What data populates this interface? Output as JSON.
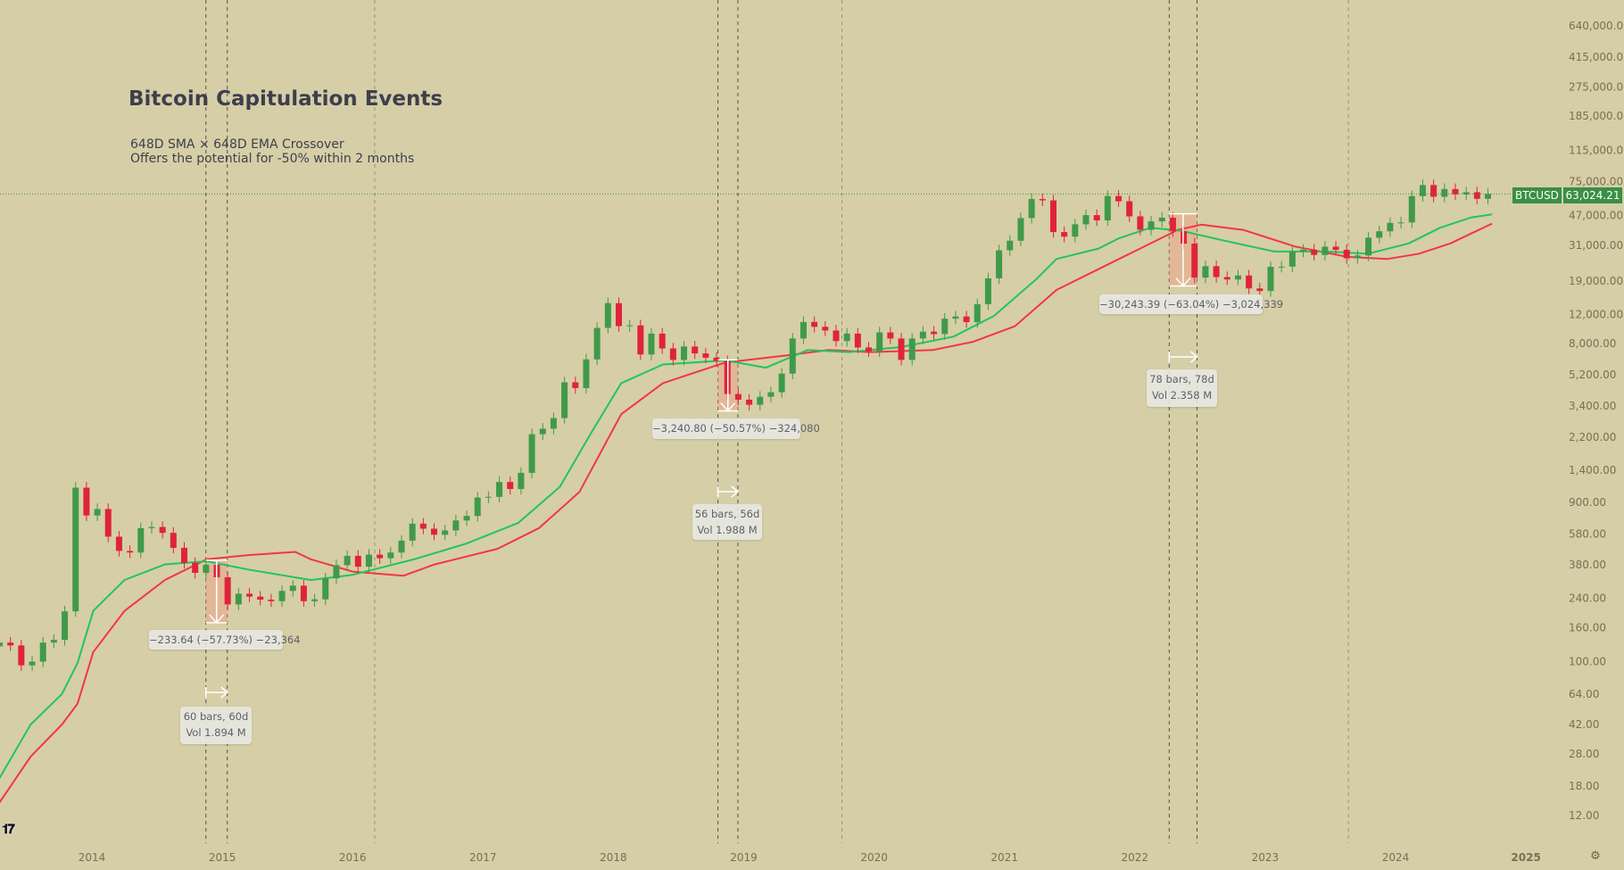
{
  "header": {
    "title": "Bitcoin Capitulation Events",
    "subtitle_line1": "648D SMA × 648D EMA Crossover",
    "subtitle_line2": "Offers the potential for -50% within 2 months"
  },
  "price_tag": {
    "symbol": "BTCUSD",
    "value": "63,024.21",
    "price": 63024.21,
    "color": "#3a8f45"
  },
  "colors": {
    "background": "#d6cea6",
    "up": "#3f9a4a",
    "down": "#e0233a",
    "sma": "#21c55d",
    "ema": "#f23645",
    "measure_fill": "#e9a98a"
  },
  "chart_data": {
    "type": "candlestick",
    "symbol": "BTCUSD",
    "y_scale": "log",
    "ylim": [
      10,
      800000
    ],
    "xlim": [
      "2013-04",
      "2025-03"
    ],
    "grid": false,
    "y_ticks": [
      "640,000.00",
      "415,000.00",
      "275,000.00",
      "185,000.00",
      "115,000.00",
      "75,000.00",
      "47,000.00",
      "31,000.00",
      "19,000.00",
      "12,000.00",
      "8,000.00",
      "5,200.00",
      "3,400.00",
      "2,200.00",
      "1,400.00",
      "900.00",
      "580.00",
      "380.00",
      "240.00",
      "160.00",
      "100.00",
      "64.00",
      "42.00",
      "28.00",
      "18.00",
      "12.00"
    ],
    "x_ticks": [
      "2014",
      "2015",
      "2016",
      "2017",
      "2018",
      "2019",
      "2020",
      "2021",
      "2022",
      "2023",
      "2024",
      "2025"
    ],
    "monthly_close": [
      [
        "2013-04",
        130
      ],
      [
        "2013-05",
        125
      ],
      [
        "2013-06",
        95
      ],
      [
        "2013-07",
        100
      ],
      [
        "2013-08",
        130
      ],
      [
        "2013-09",
        135
      ],
      [
        "2013-10",
        200
      ],
      [
        "2013-11",
        1100
      ],
      [
        "2013-12",
        750
      ],
      [
        "2014-01",
        820
      ],
      [
        "2014-02",
        560
      ],
      [
        "2014-03",
        460
      ],
      [
        "2014-04",
        450
      ],
      [
        "2014-05",
        630
      ],
      [
        "2014-06",
        640
      ],
      [
        "2014-07",
        590
      ],
      [
        "2014-08",
        480
      ],
      [
        "2014-09",
        390
      ],
      [
        "2014-10",
        340
      ],
      [
        "2014-11",
        380
      ],
      [
        "2014-12",
        320
      ],
      [
        "2015-01",
        220
      ],
      [
        "2015-02",
        255
      ],
      [
        "2015-03",
        245
      ],
      [
        "2015-04",
        235
      ],
      [
        "2015-05",
        230
      ],
      [
        "2015-06",
        265
      ],
      [
        "2015-07",
        285
      ],
      [
        "2015-08",
        230
      ],
      [
        "2015-09",
        236
      ],
      [
        "2015-10",
        315
      ],
      [
        "2015-11",
        378
      ],
      [
        "2015-12",
        430
      ],
      [
        "2016-01",
        370
      ],
      [
        "2016-02",
        437
      ],
      [
        "2016-03",
        416
      ],
      [
        "2016-04",
        450
      ],
      [
        "2016-05",
        530
      ],
      [
        "2016-06",
        670
      ],
      [
        "2016-07",
        625
      ],
      [
        "2016-08",
        575
      ],
      [
        "2016-09",
        610
      ],
      [
        "2016-10",
        700
      ],
      [
        "2016-11",
        745
      ],
      [
        "2016-12",
        960
      ],
      [
        "2017-01",
        970
      ],
      [
        "2017-02",
        1190
      ],
      [
        "2017-03",
        1080
      ],
      [
        "2017-04",
        1350
      ],
      [
        "2017-05",
        2300
      ],
      [
        "2017-06",
        2480
      ],
      [
        "2017-07",
        2870
      ],
      [
        "2017-08",
        4700
      ],
      [
        "2017-09",
        4340
      ],
      [
        "2017-10",
        6450
      ],
      [
        "2017-11",
        9950
      ],
      [
        "2017-12",
        14000
      ],
      [
        "2018-01",
        10200
      ],
      [
        "2018-02",
        10300
      ],
      [
        "2018-03",
        6900
      ],
      [
        "2018-04",
        9200
      ],
      [
        "2018-05",
        7500
      ],
      [
        "2018-06",
        6400
      ],
      [
        "2018-07",
        7700
      ],
      [
        "2018-08",
        7000
      ],
      [
        "2018-09",
        6600
      ],
      [
        "2018-10",
        6300
      ],
      [
        "2018-11",
        4000
      ],
      [
        "2018-12",
        3700
      ],
      [
        "2019-01",
        3450
      ],
      [
        "2019-02",
        3850
      ],
      [
        "2019-03",
        4100
      ],
      [
        "2019-04",
        5300
      ],
      [
        "2019-05",
        8600
      ],
      [
        "2019-06",
        10800
      ],
      [
        "2019-07",
        10100
      ],
      [
        "2019-08",
        9600
      ],
      [
        "2019-09",
        8300
      ],
      [
        "2019-10",
        9200
      ],
      [
        "2019-11",
        7600
      ],
      [
        "2019-12",
        7200
      ],
      [
        "2020-01",
        9350
      ],
      [
        "2020-02",
        8600
      ],
      [
        "2020-03",
        6400
      ],
      [
        "2020-04",
        8600
      ],
      [
        "2020-05",
        9450
      ],
      [
        "2020-06",
        9140
      ],
      [
        "2020-07",
        11300
      ],
      [
        "2020-08",
        11650
      ],
      [
        "2020-09",
        10780
      ],
      [
        "2020-10",
        13800
      ],
      [
        "2020-11",
        19700
      ],
      [
        "2020-12",
        29000
      ],
      [
        "2021-01",
        33100
      ],
      [
        "2021-02",
        45200
      ],
      [
        "2021-03",
        58800
      ],
      [
        "2021-04",
        57700
      ],
      [
        "2021-05",
        37300
      ],
      [
        "2021-06",
        35000
      ],
      [
        "2021-07",
        41500
      ],
      [
        "2021-08",
        47100
      ],
      [
        "2021-09",
        43800
      ],
      [
        "2021-10",
        61300
      ],
      [
        "2021-11",
        57000
      ],
      [
        "2021-12",
        46300
      ],
      [
        "2022-01",
        38500
      ],
      [
        "2022-02",
        43200
      ],
      [
        "2022-03",
        45500
      ],
      [
        "2022-04",
        37700
      ],
      [
        "2022-05",
        31800
      ],
      [
        "2022-06",
        19900
      ],
      [
        "2022-07",
        23300
      ],
      [
        "2022-08",
        20050
      ],
      [
        "2022-09",
        19400
      ],
      [
        "2022-10",
        20500
      ],
      [
        "2022-11",
        17150
      ],
      [
        "2022-12",
        16550
      ],
      [
        "2023-01",
        23100
      ],
      [
        "2023-02",
        23150
      ],
      [
        "2023-03",
        28500
      ],
      [
        "2023-04",
        29250
      ],
      [
        "2023-05",
        27200
      ],
      [
        "2023-06",
        30500
      ],
      [
        "2023-07",
        29200
      ],
      [
        "2023-08",
        26000
      ],
      [
        "2023-09",
        27000
      ],
      [
        "2023-10",
        34500
      ],
      [
        "2023-11",
        37700
      ],
      [
        "2023-12",
        42300
      ],
      [
        "2024-01",
        42600
      ],
      [
        "2024-02",
        61200
      ],
      [
        "2024-03",
        71300
      ],
      [
        "2024-04",
        60700
      ],
      [
        "2024-05",
        67500
      ],
      [
        "2024-06",
        62700
      ],
      [
        "2024-07",
        64600
      ],
      [
        "2024-08",
        59000
      ],
      [
        "2024-09",
        63024.21
      ]
    ],
    "sma_648d": [
      [
        2013.29,
        20
      ],
      [
        2013.53,
        42
      ],
      [
        2013.77,
        64
      ],
      [
        2013.89,
        98
      ],
      [
        2014.01,
        201
      ],
      [
        2014.25,
        308
      ],
      [
        2014.56,
        382
      ],
      [
        2014.88,
        399
      ],
      [
        2015.2,
        356
      ],
      [
        2015.68,
        308
      ],
      [
        2016.0,
        331
      ],
      [
        2016.47,
        410
      ],
      [
        2016.87,
        508
      ],
      [
        2017.27,
        676
      ],
      [
        2017.59,
        1114
      ],
      [
        2017.82,
        2275
      ],
      [
        2018.06,
        4645
      ],
      [
        2018.38,
        6010
      ],
      [
        2018.86,
        6360
      ],
      [
        2019.17,
        5750
      ],
      [
        2019.49,
        7330
      ],
      [
        2019.81,
        7130
      ],
      [
        2020.21,
        7650
      ],
      [
        2020.61,
        8830
      ],
      [
        2020.92,
        11750
      ],
      [
        2021.24,
        19360
      ],
      [
        2021.4,
        25760
      ],
      [
        2021.72,
        29700
      ],
      [
        2021.88,
        34300
      ],
      [
        2022.12,
        39540
      ],
      [
        2022.35,
        38000
      ],
      [
        2022.67,
        33340
      ],
      [
        2023.07,
        28500
      ],
      [
        2023.47,
        28500
      ],
      [
        2023.79,
        27700
      ],
      [
        2024.1,
        31900
      ],
      [
        2024.34,
        39540
      ],
      [
        2024.58,
        45600
      ],
      [
        2024.74,
        47600
      ]
    ],
    "ema_648d": [
      [
        2013.29,
        14.3
      ],
      [
        2013.53,
        27
      ],
      [
        2013.77,
        42
      ],
      [
        2013.89,
        56
      ],
      [
        2014.01,
        114
      ],
      [
        2014.25,
        201
      ],
      [
        2014.56,
        308
      ],
      [
        2014.88,
        410
      ],
      [
        2015.2,
        434
      ],
      [
        2015.56,
        454
      ],
      [
        2015.68,
        410
      ],
      [
        2016.0,
        346
      ],
      [
        2016.39,
        327
      ],
      [
        2016.63,
        382
      ],
      [
        2017.11,
        473
      ],
      [
        2017.43,
        630
      ],
      [
        2017.74,
        1038
      ],
      [
        2018.06,
        3030
      ],
      [
        2018.38,
        4645
      ],
      [
        2018.86,
        6180
      ],
      [
        2019.34,
        6830
      ],
      [
        2019.65,
        7330
      ],
      [
        2019.97,
        7130
      ],
      [
        2020.45,
        7330
      ],
      [
        2020.76,
        8220
      ],
      [
        2021.08,
        10190
      ],
      [
        2021.4,
        16800
      ],
      [
        2021.72,
        22340
      ],
      [
        2022.04,
        29700
      ],
      [
        2022.33,
        38460
      ],
      [
        2022.51,
        41300
      ],
      [
        2022.83,
        38460
      ],
      [
        2023.23,
        30550
      ],
      [
        2023.63,
        26500
      ],
      [
        2023.94,
        25760
      ],
      [
        2024.18,
        27700
      ],
      [
        2024.42,
        31900
      ],
      [
        2024.74,
        41900
      ]
    ],
    "crossover_lines": [
      "2016-03-01",
      "2019-10-01",
      "2023-08-20"
    ],
    "events": [
      {
        "start": "2014-11-15",
        "end": "2015-01-14",
        "top": 404.7,
        "bottom": 171.06,
        "change": "−233.64 (−57.73%) −23,364",
        "range": "60 bars, 60d",
        "volume": "Vol 1.894 M"
      },
      {
        "start": "2018-10-19",
        "end": "2018-12-14",
        "top": 6408.5,
        "bottom": 3167.7,
        "change": "−3,240.80 (−50.57%) −324,080",
        "range": "56 bars, 56d",
        "volume": "Vol 1.988 M"
      },
      {
        "start": "2022-04-05",
        "end": "2022-06-22",
        "top": 47976,
        "bottom": 17733,
        "change": "−30,243.39 (−63.04%) −3,024,339",
        "range": "78 bars, 78d",
        "volume": "Vol 2.358 M"
      }
    ]
  },
  "footer": {
    "logo": "TV",
    "settings_icon": "gear-icon"
  }
}
